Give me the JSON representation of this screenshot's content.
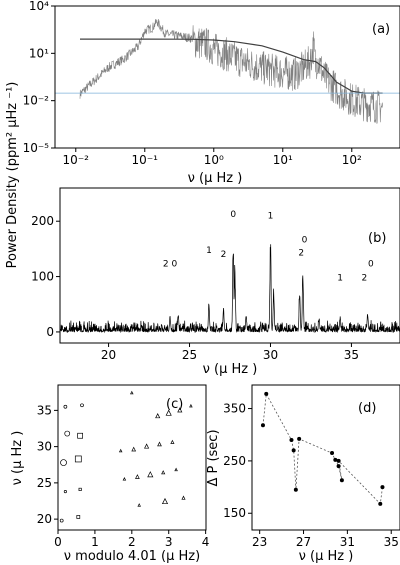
{
  "figure": {
    "shared_ylabel": "Power Density (ppm$^2$ $\\mu$Hz $^{-1}$)",
    "shared_ylabel_text": "Power Density (ppm² μHz ⁻¹)"
  },
  "chart_data": [
    {
      "panel": "(a)",
      "type": "line",
      "xscale": "log",
      "yscale": "log",
      "xlim": [
        0.005,
        500
      ],
      "ylim": [
        1e-05,
        10000
      ],
      "xticks": [
        "10⁻²",
        "10⁻¹",
        "10⁰",
        "10¹",
        "10²"
      ],
      "yticks": [
        "10⁴",
        "10¹",
        "10⁻²",
        "10⁻⁵"
      ],
      "xlabel": "ν (μ Hz )",
      "series": [
        {
          "color": "#808080",
          "x": [
            0.0115,
            0.03,
            0.05,
            0.08,
            0.1,
            0.13,
            0.15,
            0.2,
            0.3,
            0.5,
            0.8,
            1,
            1.5,
            2,
            3,
            5,
            8,
            10,
            15,
            20,
            25,
            28,
            30,
            32,
            40,
            50,
            70,
            100,
            150,
            200,
            280
          ],
          "y": [
            0.03,
            1.5,
            5,
            30,
            300,
            500,
            1200,
            200,
            150,
            100,
            60,
            30,
            15,
            8,
            4,
            2,
            1.2,
            1,
            0.8,
            2,
            5,
            50,
            3,
            8,
            0.5,
            0.2,
            0.05,
            0.02,
            0.01,
            0.008,
            0.006
          ]
        },
        {
          "color": "#404040",
          "x": [
            0.0115,
            0.05,
            0.1,
            0.3,
            0.5,
            1,
            2,
            5,
            10,
            20,
            30,
            40,
            60,
            100,
            150,
            280
          ],
          "y": [
            80,
            80,
            80,
            79,
            77,
            70,
            55,
            30,
            12,
            4,
            3,
            1.2,
            0.15,
            0.04,
            0.03,
            0.03
          ]
        },
        {
          "color": "#7fb2d9",
          "x": [
            0.005,
            500
          ],
          "y": [
            0.03,
            0.03
          ]
        }
      ]
    },
    {
      "panel": "(b)",
      "type": "line",
      "xlim": [
        17,
        38
      ],
      "ylim": [
        -20,
        260
      ],
      "xticks": [
        20,
        25,
        30,
        35
      ],
      "yticks": [
        0,
        100,
        200
      ],
      "xlabel": "ν (μ Hz )",
      "peaks": [
        {
          "x": 27.7,
          "y": 180
        },
        {
          "x": 27.8,
          "y": 130
        },
        {
          "x": 30.0,
          "y": 175
        },
        {
          "x": 30.2,
          "y": 80
        },
        {
          "x": 32.0,
          "y": 112
        },
        {
          "x": 31.8,
          "y": 85
        },
        {
          "x": 26.2,
          "y": 55
        },
        {
          "x": 27.1,
          "y": 45
        },
        {
          "x": 24.3,
          "y": 35
        },
        {
          "x": 34.3,
          "y": 30
        },
        {
          "x": 36.0,
          "y": 38
        },
        {
          "x": 23.8,
          "y": 30
        },
        {
          "x": 28.5,
          "y": 35
        },
        {
          "x": 33.0,
          "y": 28
        }
      ],
      "annotations": [
        {
          "text": "0",
          "x": 27.7,
          "y": 208
        },
        {
          "text": "1",
          "x": 30.0,
          "y": 205
        },
        {
          "text": "0",
          "x": 32.1,
          "y": 162
        },
        {
          "text": "2",
          "x": 31.9,
          "y": 138
        },
        {
          "text": "1",
          "x": 26.2,
          "y": 143
        },
        {
          "text": "2",
          "x": 27.1,
          "y": 135
        },
        {
          "text": "2 0",
          "x": 23.8,
          "y": 118
        },
        {
          "text": "1",
          "x": 34.3,
          "y": 93
        },
        {
          "text": "2",
          "x": 35.8,
          "y": 93
        },
        {
          "text": "0",
          "x": 36.2,
          "y": 118
        }
      ]
    },
    {
      "panel": "(c)",
      "type": "scatter",
      "xlim": [
        0,
        4.01
      ],
      "ylim": [
        18.5,
        38.5
      ],
      "xticks": [
        0,
        1,
        2,
        3,
        4
      ],
      "yticks": [
        20,
        25,
        30,
        35
      ],
      "xlabel": "ν modulo 4.01 (μ Hz)",
      "ylabel": "ν (μ Hz )",
      "points": [
        {
          "x": 0.2,
          "y": 35.5,
          "m": "o",
          "s": 1.5
        },
        {
          "x": 0.65,
          "y": 35.7,
          "m": "o",
          "s": 1.5
        },
        {
          "x": 0.25,
          "y": 31.8,
          "m": "o",
          "s": 2.5
        },
        {
          "x": 0.6,
          "y": 31.5,
          "m": "s",
          "s": 2.5
        },
        {
          "x": 0.15,
          "y": 27.8,
          "m": "o",
          "s": 3
        },
        {
          "x": 0.55,
          "y": 28.3,
          "m": "s",
          "s": 3
        },
        {
          "x": 0.2,
          "y": 23.8,
          "m": "o",
          "s": 1.2
        },
        {
          "x": 0.6,
          "y": 24.1,
          "m": "s",
          "s": 1.2
        },
        {
          "x": 0.1,
          "y": 19.8,
          "m": "o",
          "s": 1.5
        },
        {
          "x": 0.55,
          "y": 20.3,
          "m": "s",
          "s": 1.5
        },
        {
          "x": 2.0,
          "y": 37.4,
          "m": "^",
          "s": 1.2
        },
        {
          "x": 2.7,
          "y": 34.2,
          "m": "^",
          "s": 2
        },
        {
          "x": 3.0,
          "y": 34.6,
          "m": "^",
          "s": 2.5
        },
        {
          "x": 3.3,
          "y": 35.0,
          "m": "^",
          "s": 2
        },
        {
          "x": 3.6,
          "y": 35.6,
          "m": "^",
          "s": 1.2
        },
        {
          "x": 1.7,
          "y": 29.4,
          "m": "^",
          "s": 1.2
        },
        {
          "x": 2.05,
          "y": 29.6,
          "m": "^",
          "s": 1.8
        },
        {
          "x": 2.4,
          "y": 30.0,
          "m": "^",
          "s": 2
        },
        {
          "x": 2.75,
          "y": 30.3,
          "m": "^",
          "s": 1.8
        },
        {
          "x": 3.1,
          "y": 30.6,
          "m": "^",
          "s": 1.5
        },
        {
          "x": 1.8,
          "y": 25.5,
          "m": "^",
          "s": 1.2
        },
        {
          "x": 2.15,
          "y": 25.8,
          "m": "^",
          "s": 1.8
        },
        {
          "x": 2.5,
          "y": 26.1,
          "m": "^",
          "s": 2.5
        },
        {
          "x": 2.85,
          "y": 26.4,
          "m": "^",
          "s": 1.5
        },
        {
          "x": 3.2,
          "y": 26.8,
          "m": "^",
          "s": 1.2
        },
        {
          "x": 2.2,
          "y": 21.9,
          "m": "^",
          "s": 1.2
        },
        {
          "x": 2.9,
          "y": 22.4,
          "m": "^",
          "s": 2.5
        },
        {
          "x": 3.4,
          "y": 22.9,
          "m": "^",
          "s": 1.5
        }
      ]
    },
    {
      "panel": "(d)",
      "type": "line",
      "xlim": [
        22.3,
        35.8
      ],
      "ylim": [
        118,
        395
      ],
      "xticks": [
        23,
        27,
        31,
        35
      ],
      "yticks": [
        150,
        250,
        350
      ],
      "xlabel": "ν (μ Hz )",
      "ylabel": "Δ P (sec)",
      "x": [
        23.3,
        23.6,
        25.9,
        26.1,
        26.3,
        26.6,
        29.6,
        29.9,
        30.2,
        30.5,
        30.2,
        34.0,
        34.2
      ],
      "y": [
        318,
        378,
        290,
        270,
        195,
        292,
        265,
        252,
        240,
        213,
        250,
        168,
        200
      ]
    }
  ]
}
